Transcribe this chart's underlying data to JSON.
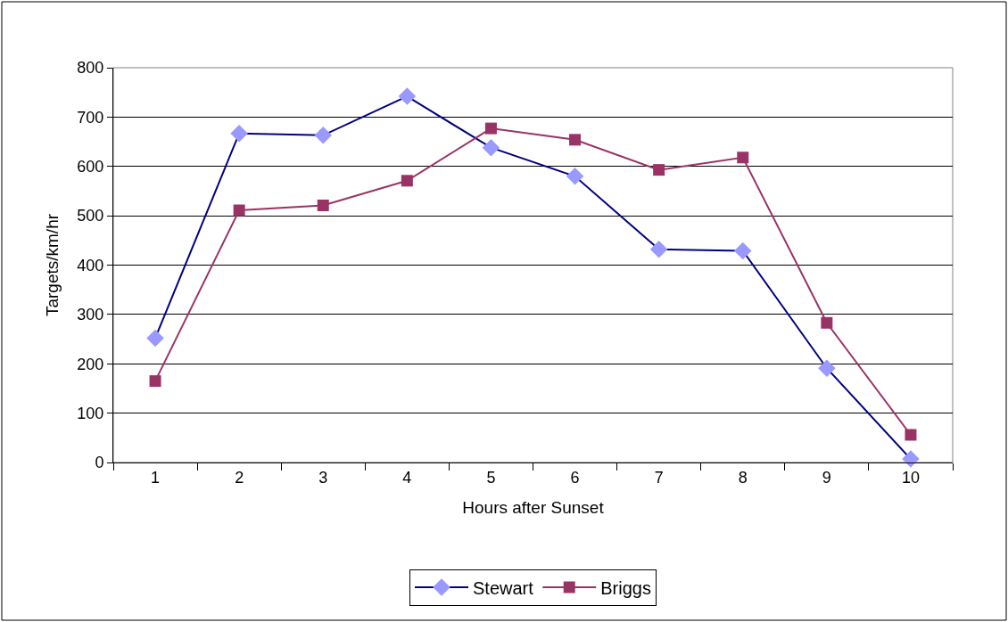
{
  "chart_data": {
    "type": "line",
    "xlabel": "Hours after Sunset",
    "ylabel": "Targets/km/hr",
    "categories": [
      "1",
      "2",
      "3",
      "4",
      "5",
      "6",
      "7",
      "8",
      "9",
      "10"
    ],
    "series": [
      {
        "name": "Stewart",
        "color": "#000080",
        "marker": "diamond",
        "values": [
          252,
          667,
          663,
          742,
          638,
          580,
          432,
          429,
          191,
          7
        ]
      },
      {
        "name": "Briggs",
        "color": "#993366",
        "marker": "square",
        "values": [
          165,
          511,
          521,
          571,
          677,
          654,
          593,
          618,
          283,
          56
        ]
      }
    ],
    "ylim": [
      0,
      800
    ],
    "yticks": [
      0,
      100,
      200,
      300,
      400,
      500,
      600,
      700,
      800
    ],
    "grid": "y",
    "legend": "bottom",
    "line_style": "solid"
  }
}
